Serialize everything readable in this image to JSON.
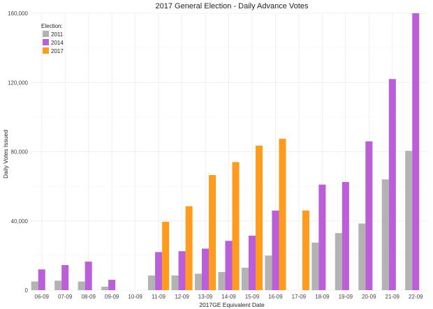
{
  "chart_data": {
    "type": "bar",
    "title": "2017 General Election - Daily Advance Votes",
    "xlabel": "2017GE Equivalent Date",
    "ylabel": "Daily Votes Issued",
    "ylim": [
      0,
      160000
    ],
    "yticks": [
      0,
      40000,
      80000,
      120000,
      160000
    ],
    "ytick_labels": [
      "0",
      "40,000",
      "80,000",
      "120,000",
      "160,000"
    ],
    "categories": [
      "06-09",
      "07-09",
      "08-09",
      "09-09",
      "10-09",
      "11-09",
      "12-09",
      "13-09",
      "14-09",
      "15-09",
      "16-09",
      "17-09",
      "18-09",
      "19-09",
      "20-09",
      "21-09",
      "22-09"
    ],
    "legend_title": "Election:",
    "legend_position": "top-left",
    "grid": true,
    "series": [
      {
        "name": "2011",
        "color": "#b3b3b3",
        "values": [
          5000,
          5500,
          5000,
          2000,
          null,
          8500,
          8500,
          9500,
          10500,
          13000,
          20000,
          null,
          27500,
          33000,
          38500,
          64000,
          80500
        ]
      },
      {
        "name": "2014",
        "color": "#bb5fd8",
        "values": [
          12000,
          14500,
          16500,
          6000,
          null,
          22000,
          22500,
          24000,
          28500,
          31500,
          46000,
          null,
          61000,
          62500,
          86000,
          122000,
          160000
        ]
      },
      {
        "name": "2017",
        "color": "#ff9b1f",
        "values": [
          null,
          null,
          null,
          null,
          null,
          39500,
          48500,
          66500,
          74000,
          83500,
          87500,
          46000,
          null,
          null,
          null,
          null,
          null
        ]
      }
    ]
  }
}
